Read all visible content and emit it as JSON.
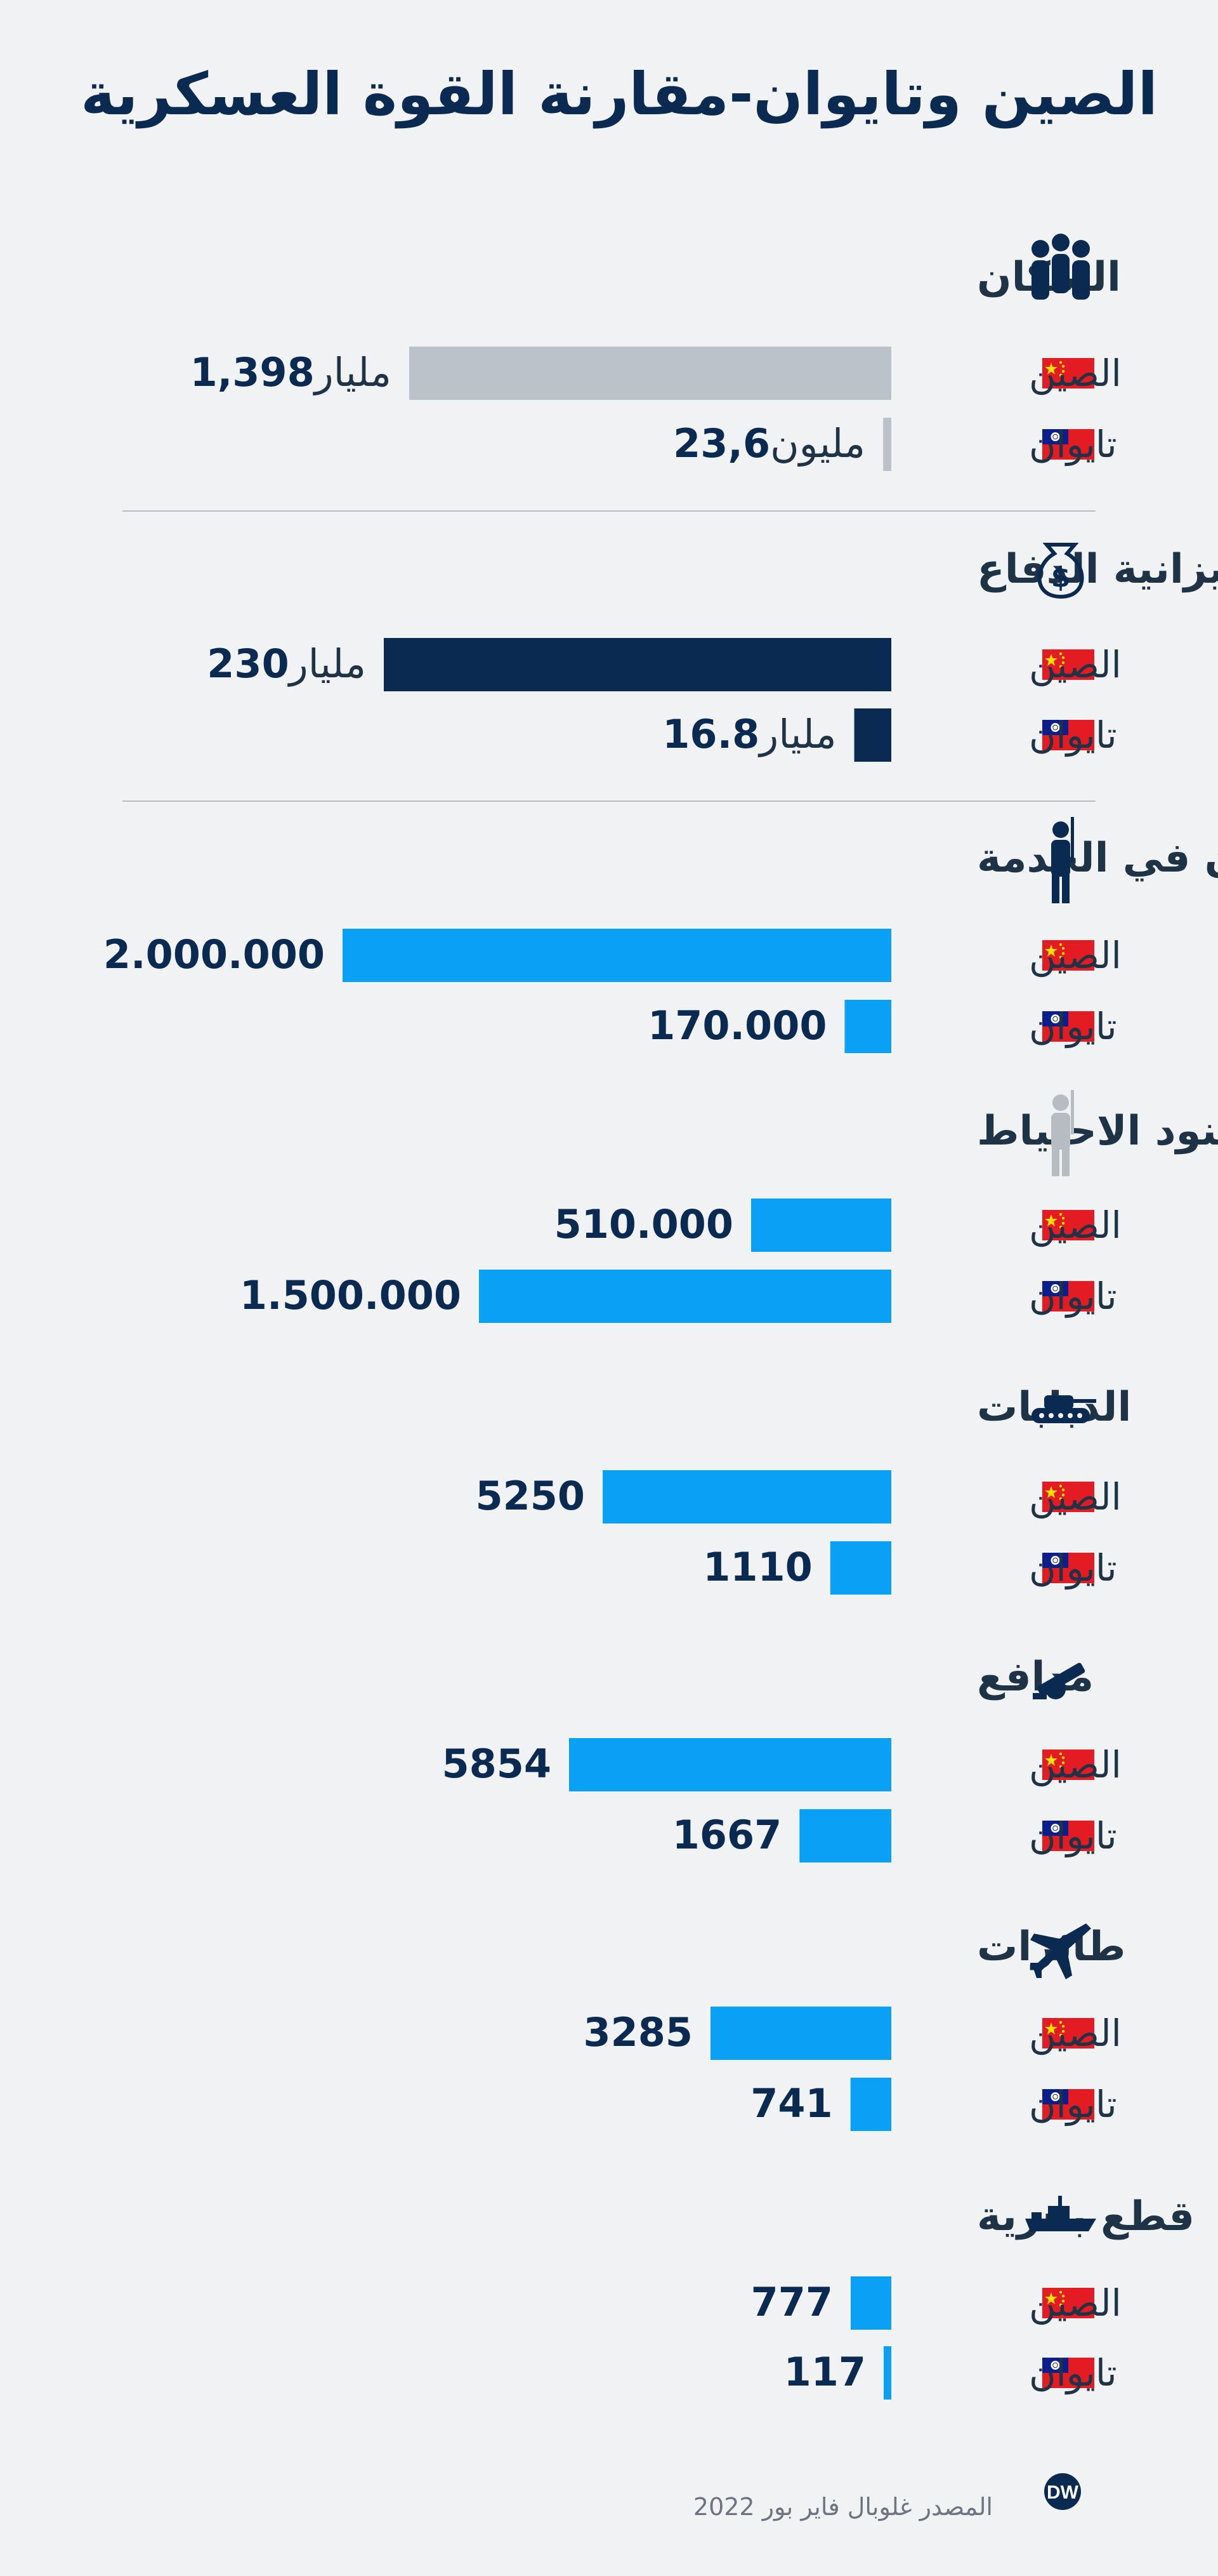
{
  "title": "الصين وتايوان-مقارنة القوة العسكرية",
  "source": "المصدر غلوبال فاير بور 2022",
  "logo_text": "DW",
  "countries": {
    "china": "الصين",
    "taiwan": "تايوان"
  },
  "colors": {
    "background": "#f1f2f4",
    "text_dark": "#0a2a52",
    "population_bar": "#bcc2ca",
    "budget_bar": "#0a2a52",
    "military_bar": "#0aa0f5",
    "divider": "#b9bec6",
    "icon_grey": "#b7bcc3",
    "flag_red": "#e31b23",
    "flag_blue": "#0b1e8c"
  },
  "chart_data": {
    "type": "bar",
    "orientation": "horizontal",
    "categories": [
      "الصين",
      "تايوان"
    ],
    "groups": [
      {
        "label": "السكان",
        "icon": "people-icon",
        "bar_color": "#bcc2ca",
        "values": [
          1398000000,
          23600000
        ],
        "value_labels": [
          {
            "number": "1,398",
            "unit": "مليار"
          },
          {
            "number": "23,6",
            "unit": "مليون"
          }
        ]
      },
      {
        "label": "ميزانية  الدفاع",
        "icon": "money-bag-icon",
        "bar_color": "#0a2a52",
        "values": [
          230,
          16.8
        ],
        "value_labels": [
          {
            "number": "230",
            "unit": "مليار"
          },
          {
            "number": "16.8",
            "unit": "مليار"
          }
        ]
      },
      {
        "label": "الجنود  العاملون  في  الخدمة",
        "icon": "soldier-icon",
        "bar_color": "#0aa0f5",
        "values": [
          2000000,
          170000
        ],
        "value_labels": [
          {
            "number": "2.000.000",
            "unit": ""
          },
          {
            "number": "170.000",
            "unit": ""
          }
        ]
      },
      {
        "label": "جنود  الاحتياط",
        "icon": "reserve-soldier-icon",
        "bar_color": "#0aa0f5",
        "values": [
          510000,
          1500000
        ],
        "value_labels": [
          {
            "number": "510.000",
            "unit": ""
          },
          {
            "number": "1.500.000",
            "unit": ""
          }
        ]
      },
      {
        "label": "الدبابات",
        "icon": "tank-icon",
        "bar_color": "#0aa0f5",
        "values": [
          5250,
          1110
        ],
        "value_labels": [
          {
            "number": "5250",
            "unit": ""
          },
          {
            "number": "1110",
            "unit": ""
          }
        ]
      },
      {
        "label": "مدافع",
        "icon": "artillery-icon",
        "bar_color": "#0aa0f5",
        "values": [
          5854,
          1667
        ],
        "value_labels": [
          {
            "number": "5854",
            "unit": ""
          },
          {
            "number": "1667",
            "unit": ""
          }
        ]
      },
      {
        "label": "طائرات",
        "icon": "airplane-icon",
        "bar_color": "#0aa0f5",
        "values": [
          3285,
          741
        ],
        "value_labels": [
          {
            "number": "3285",
            "unit": ""
          },
          {
            "number": "741",
            "unit": ""
          }
        ]
      },
      {
        "label": "قطع  بحرية",
        "icon": "ship-icon",
        "bar_color": "#0aa0f5",
        "values": [
          777,
          117
        ],
        "value_labels": [
          {
            "number": "777",
            "unit": ""
          },
          {
            "number": "117",
            "unit": ""
          }
        ]
      }
    ],
    "grid": false,
    "legend": "none"
  }
}
